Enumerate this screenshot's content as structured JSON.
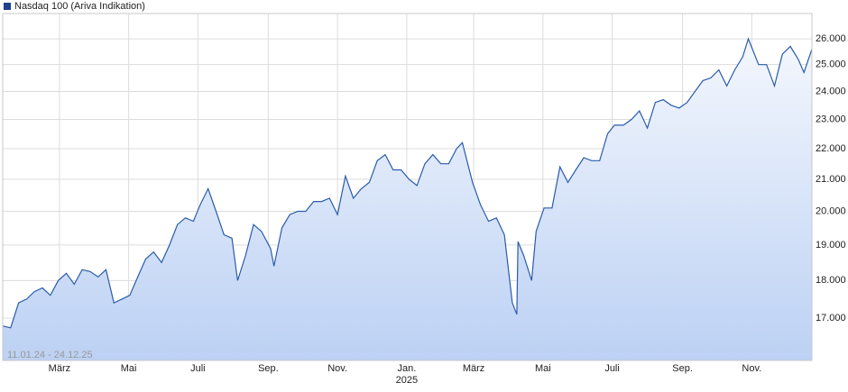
{
  "chart_data": {
    "type": "area-line",
    "range_label": "11.01.24 - 24.12.25",
    "xlim": [
      "2024-01-11",
      "2025-12-24"
    ],
    "ylim": [
      15940,
      27020
    ],
    "ylog": true,
    "grid": true,
    "yticks": [
      {
        "value": 17000,
        "label": "17.000"
      },
      {
        "value": 18000,
        "label": "18.000"
      },
      {
        "value": 19000,
        "label": "19.000"
      },
      {
        "value": 20000,
        "label": "20.000"
      },
      {
        "value": 21000,
        "label": "21.000"
      },
      {
        "value": 22000,
        "label": "22.000"
      },
      {
        "value": 23000,
        "label": "23.000"
      },
      {
        "value": 24000,
        "label": "24.000"
      },
      {
        "value": 25000,
        "label": "25.000"
      },
      {
        "value": 26000,
        "label": "26.000"
      }
    ],
    "xticks": [
      {
        "value": "2024-03-01",
        "label": "März"
      },
      {
        "value": "2024-05-01",
        "label": "Mai"
      },
      {
        "value": "2024-07-01",
        "label": "Juli"
      },
      {
        "value": "2024-09-01",
        "label": "Sep."
      },
      {
        "value": "2024-11-01",
        "label": "Nov."
      },
      {
        "value": "2025-01-01",
        "label": "Jan."
      },
      {
        "value": "2025-03-01",
        "label": "März"
      },
      {
        "value": "2025-05-01",
        "label": "Mai"
      },
      {
        "value": "2025-07-01",
        "label": "Juli"
      },
      {
        "value": "2025-09-01",
        "label": "Sep."
      },
      {
        "value": "2025-11-01",
        "label": "Nov."
      }
    ],
    "xticks_secondary": [
      {
        "value": "2025-01-01",
        "label": "2025"
      }
    ],
    "x": [
      "2024-01-11",
      "2024-01-18",
      "2024-01-25",
      "2024-02-01",
      "2024-02-08",
      "2024-02-15",
      "2024-02-22",
      "2024-02-29",
      "2024-03-07",
      "2024-03-14",
      "2024-03-21",
      "2024-03-28",
      "2024-04-04",
      "2024-04-11",
      "2024-04-18",
      "2024-04-25",
      "2024-05-02",
      "2024-05-09",
      "2024-05-16",
      "2024-05-23",
      "2024-05-30",
      "2024-06-06",
      "2024-06-13",
      "2024-06-20",
      "2024-06-27",
      "2024-07-03",
      "2024-07-10",
      "2024-07-17",
      "2024-07-24",
      "2024-07-31",
      "2024-08-05",
      "2024-08-12",
      "2024-08-19",
      "2024-08-26",
      "2024-09-03",
      "2024-09-06",
      "2024-09-13",
      "2024-09-20",
      "2024-09-27",
      "2024-10-04",
      "2024-10-11",
      "2024-10-18",
      "2024-10-25",
      "2024-11-01",
      "2024-11-08",
      "2024-11-15",
      "2024-11-22",
      "2024-11-29",
      "2024-12-06",
      "2024-12-13",
      "2024-12-20",
      "2024-12-27",
      "2025-01-03",
      "2025-01-10",
      "2025-01-17",
      "2025-01-24",
      "2025-01-31",
      "2025-02-07",
      "2025-02-14",
      "2025-02-19",
      "2025-02-28",
      "2025-03-07",
      "2025-03-14",
      "2025-03-21",
      "2025-03-28",
      "2025-04-04",
      "2025-04-08",
      "2025-04-09",
      "2025-04-14",
      "2025-04-21",
      "2025-04-25",
      "2025-05-02",
      "2025-05-09",
      "2025-05-16",
      "2025-05-23",
      "2025-05-30",
      "2025-06-06",
      "2025-06-13",
      "2025-06-20",
      "2025-06-27",
      "2025-07-03",
      "2025-07-11",
      "2025-07-18",
      "2025-07-25",
      "2025-08-01",
      "2025-08-08",
      "2025-08-15",
      "2025-08-22",
      "2025-08-29",
      "2025-09-05",
      "2025-09-12",
      "2025-09-19",
      "2025-09-26",
      "2025-10-03",
      "2025-10-10",
      "2025-10-17",
      "2025-10-24",
      "2025-10-29",
      "2025-11-07",
      "2025-11-14",
      "2025-11-21",
      "2025-11-28",
      "2025-12-05",
      "2025-12-12",
      "2025-12-17",
      "2025-12-24"
    ],
    "series": [
      {
        "name": "Nasdaq 100 (Ariva Indikation)",
        "color": "#2a5caa",
        "legend_color": "#1f3f8f",
        "values": [
          16800,
          16750,
          17400,
          17500,
          17700,
          17800,
          17600,
          18000,
          18200,
          17900,
          18300,
          18250,
          18100,
          18300,
          17400,
          17500,
          17600,
          18100,
          18600,
          18800,
          18500,
          19000,
          19600,
          19800,
          19700,
          20200,
          20700,
          20000,
          19300,
          19200,
          18000,
          18700,
          19600,
          19400,
          18900,
          18400,
          19500,
          19900,
          20000,
          20000,
          20300,
          20300,
          20400,
          19900,
          21100,
          20400,
          20700,
          20900,
          21600,
          21800,
          21300,
          21300,
          21000,
          20800,
          21500,
          21800,
          21500,
          21500,
          22000,
          22200,
          20900,
          20200,
          19700,
          19800,
          19300,
          17400,
          17100,
          19100,
          18700,
          18000,
          19400,
          20100,
          20100,
          21400,
          20900,
          21300,
          21700,
          21600,
          21600,
          22500,
          22800,
          22800,
          23000,
          23300,
          22700,
          23600,
          23700,
          23500,
          23400,
          23600,
          24000,
          24400,
          24500,
          24800,
          24200,
          24800,
          25300,
          26000,
          25000,
          25000,
          24200,
          25400,
          25700,
          25200,
          24700,
          25600
        ]
      }
    ]
  }
}
